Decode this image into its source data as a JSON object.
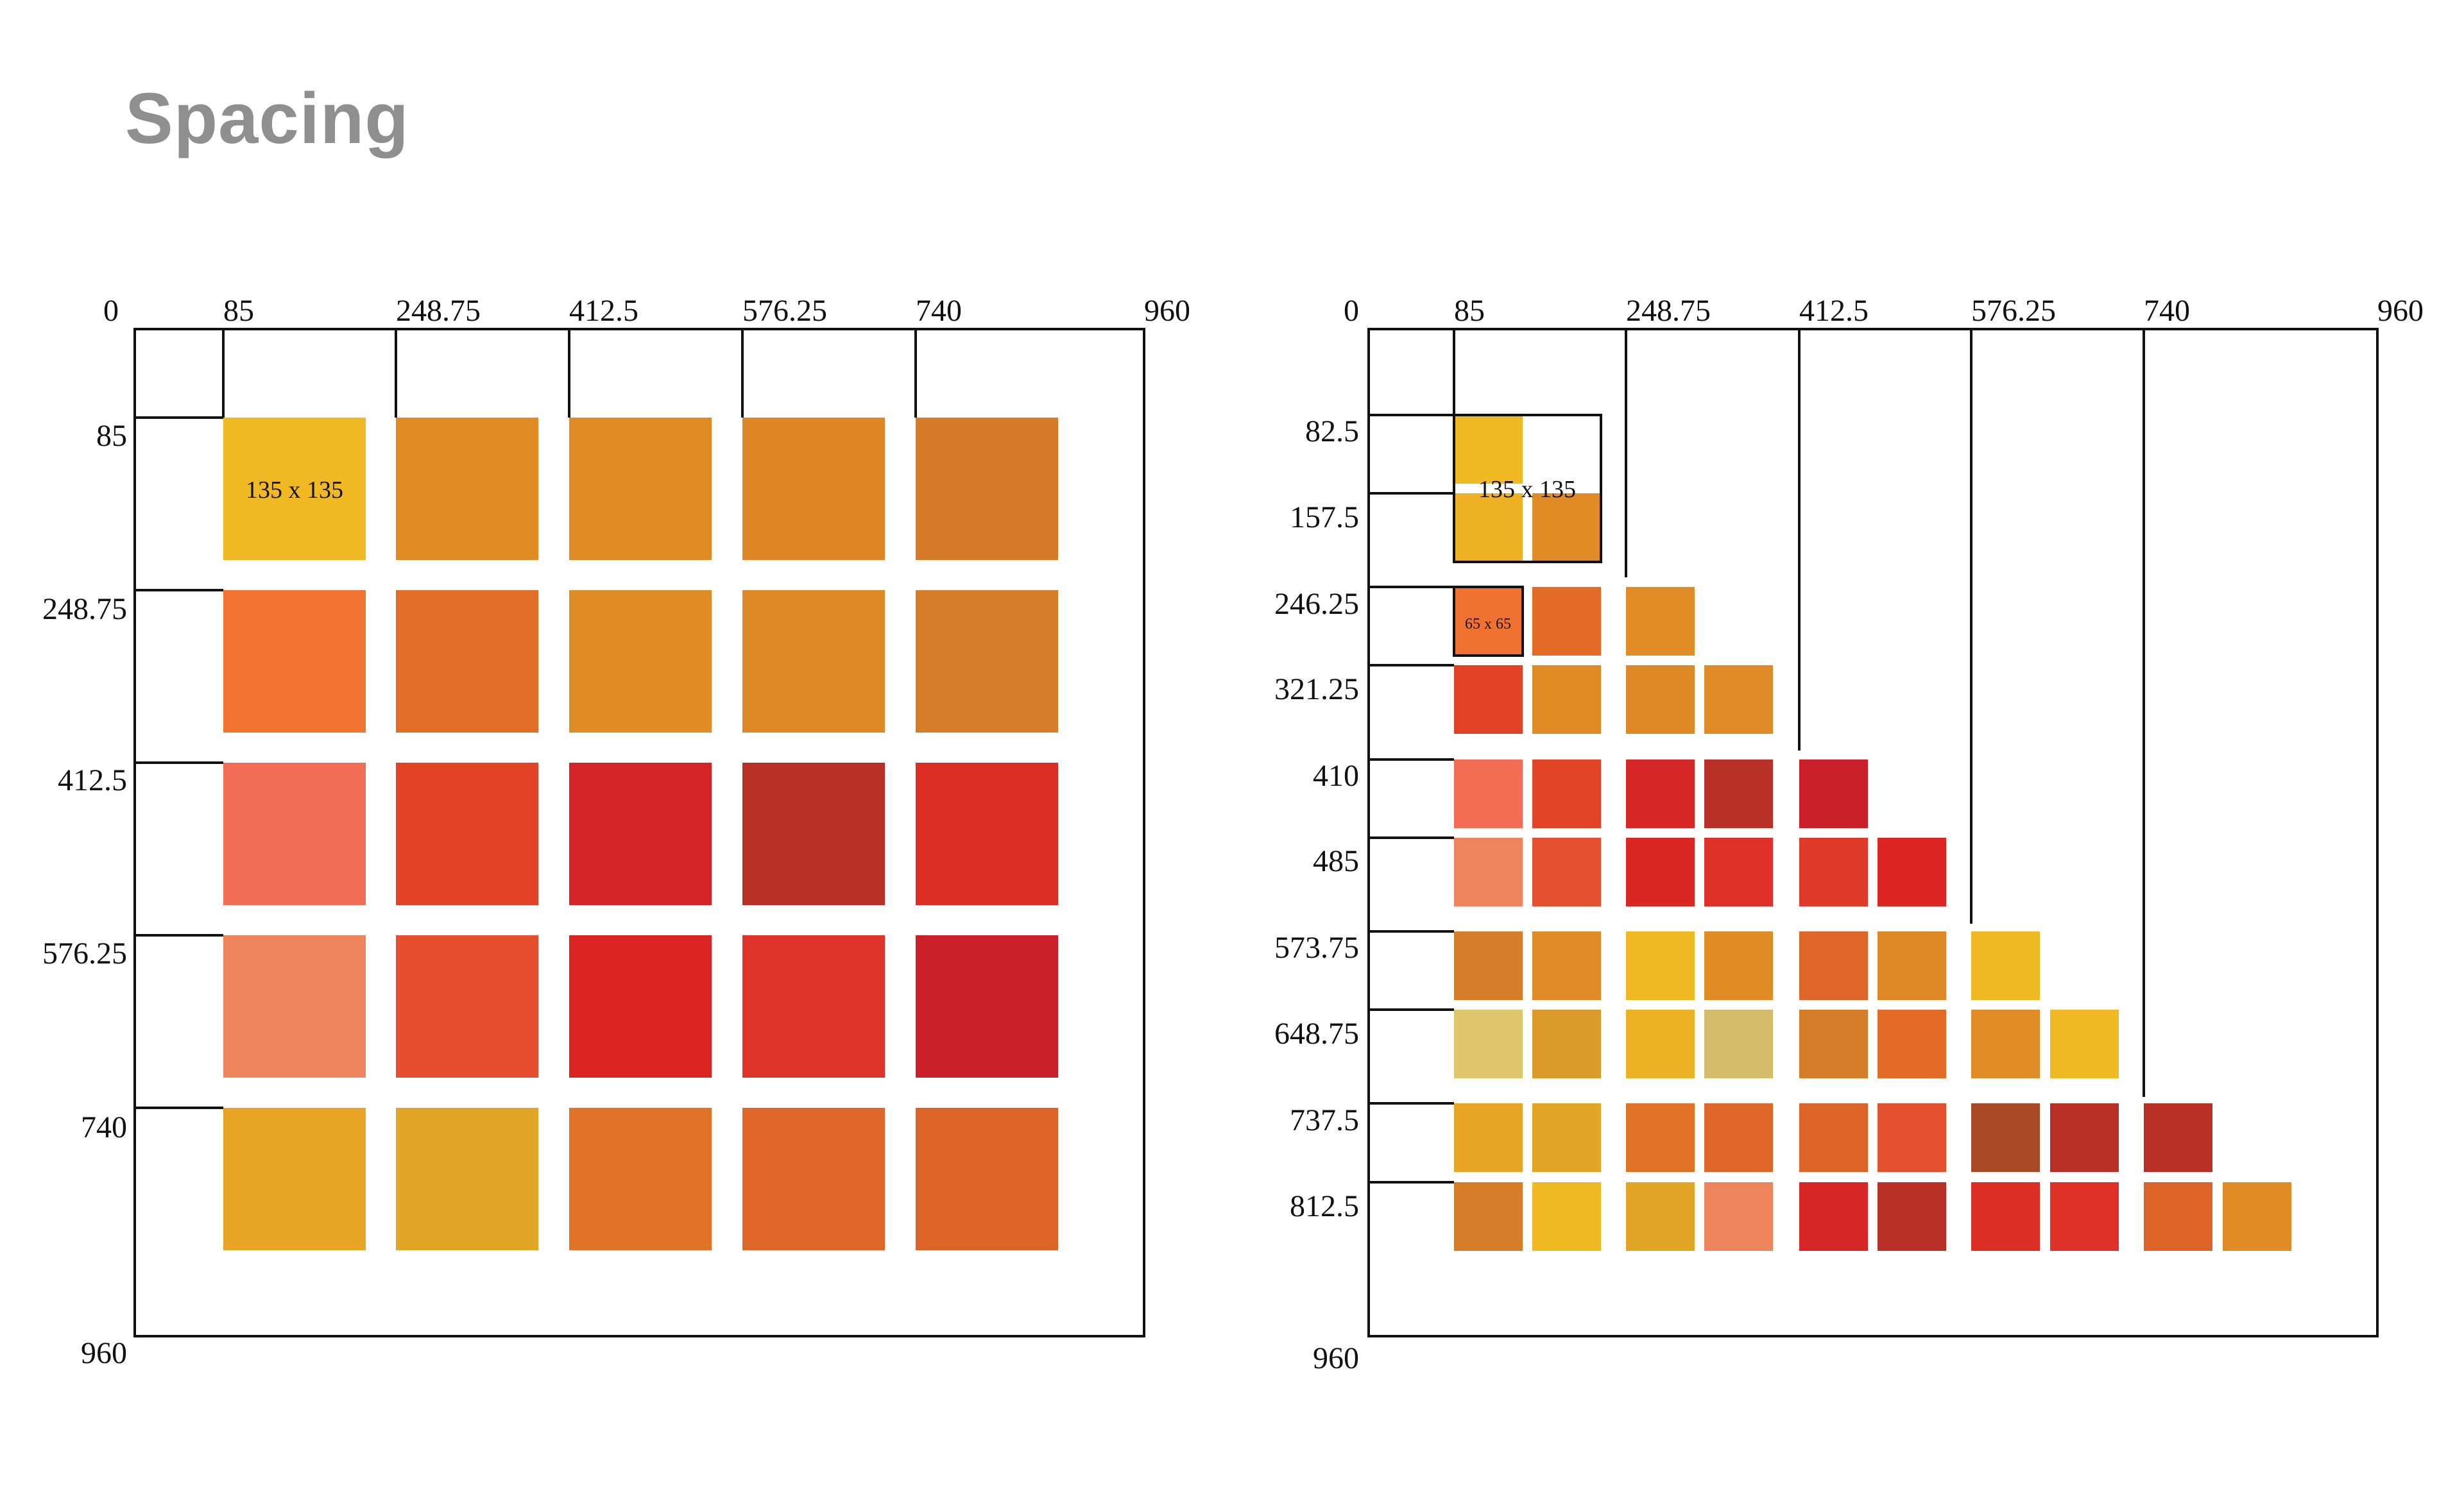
{
  "title": "Spacing",
  "left_grid": {
    "x_ticks": [
      "0",
      "85",
      "248.75",
      "412.5",
      "576.25",
      "740",
      "960"
    ],
    "y_ticks": [
      "85",
      "248.75",
      "412.5",
      "576.25",
      "740",
      "960"
    ],
    "size_label": "135 x 135",
    "rows": [
      [
        "#f0b823",
        "#e08b24",
        "#e08a25",
        "#de8626",
        "#d67c28"
      ],
      [
        "#f37331",
        "#e26d26",
        "#e08c26",
        "#de8826",
        "#d67d29"
      ],
      [
        "#f26d55",
        "#e24225",
        "#d52425",
        "#b92e25",
        "#dc2e25"
      ],
      [
        "#ef855c",
        "#e54f2e",
        "#db2424",
        "#df3329",
        "#cb1f2a"
      ],
      [
        "#e8a424",
        "#e3a526",
        "#e07226",
        "#dd6628",
        "#dd6429"
      ]
    ]
  },
  "right_grid": {
    "x_ticks": [
      "0",
      "85",
      "248.75",
      "412.5",
      "576.25",
      "740",
      "960"
    ],
    "y_ticks": [
      "82.5",
      "157.5",
      "246.25",
      "321.25",
      "410",
      "485",
      "573.75",
      "648.75",
      "737.5",
      "812.5",
      "960"
    ],
    "size_label_large": "135 x 135",
    "size_label_small": "65 x 65",
    "rows": [
      [
        "#f0b823"
      ],
      [
        "#edb123",
        "#e08b25"
      ],
      [
        "#f07231",
        "#e26c26",
        "#e08d27"
      ],
      [
        "#e24226",
        "#e08b26",
        "#de8727",
        "#df8928"
      ],
      [
        "#f26d54",
        "#e24526",
        "#d72626",
        "#b93126",
        "#cb1f2a"
      ],
      [
        "#ef855c",
        "#e5502f",
        "#db2626",
        "#df3129",
        "#e03a2a",
        "#dc2525"
      ],
      [
        "#d67d29",
        "#e08b27",
        "#f0b823",
        "#e08b25",
        "#dd6628",
        "#de8727",
        "#f0b823"
      ],
      [
        "#dfc56b",
        "#dc9a2b",
        "#edb123",
        "#d5bc6b",
        "#d67d29",
        "#e26c26",
        "#e08d27",
        "#f0b823"
      ],
      [
        "#e8a424",
        "#e3a526",
        "#e07226",
        "#dd6628",
        "#dd6429",
        "#e5502f",
        "#a94926",
        "#b92e25",
        "#b92e25"
      ],
      [
        "#d67d29",
        "#f0b823",
        "#e3a526",
        "#ef855c",
        "#d72626",
        "#b93126",
        "#dc2e25",
        "#df3129",
        "#dd6429",
        "#e08b26"
      ]
    ]
  }
}
